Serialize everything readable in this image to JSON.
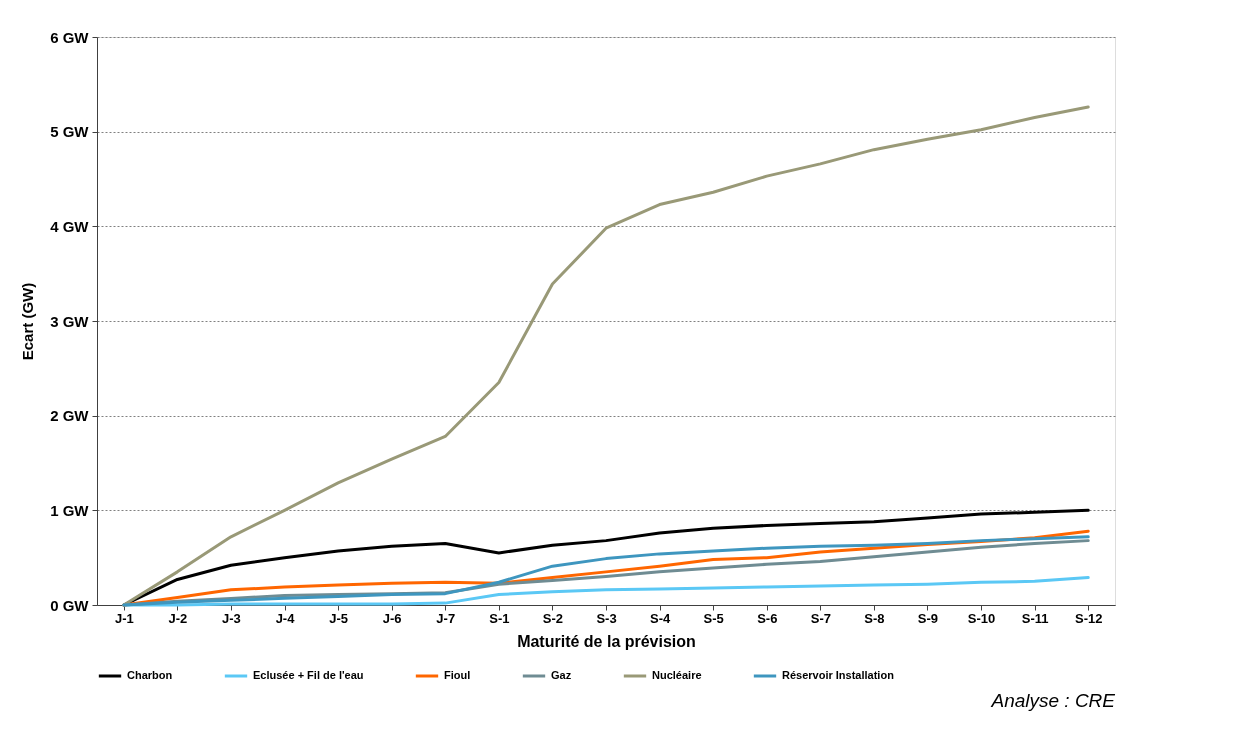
{
  "chart_data": {
    "type": "line",
    "xlabel": "Maturité de la prévision",
    "ylabel": "Ecart (GW)",
    "categories": [
      "J-1",
      "J-2",
      "J-3",
      "J-4",
      "J-5",
      "J-6",
      "J-7",
      "S-1",
      "S-2",
      "S-3",
      "S-4",
      "S-5",
      "S-6",
      "S-7",
      "S-8",
      "S-9",
      "S-10",
      "S-11",
      "S-12"
    ],
    "series": [
      {
        "name": "Charbon",
        "color": "#000000",
        "values": [
          0,
          0.27,
          0.42,
          0.5,
          0.57,
          0.62,
          0.65,
          0.55,
          0.63,
          0.68,
          0.76,
          0.81,
          0.84,
          0.86,
          0.88,
          0.92,
          0.96,
          0.98,
          1.0
        ]
      },
      {
        "name": "Eclusée + Fil de l'eau",
        "color": "#5bc8f5",
        "values": [
          0,
          0.0,
          0.01,
          0.01,
          0.01,
          0.01,
          0.02,
          0.11,
          0.14,
          0.16,
          0.17,
          0.18,
          0.19,
          0.2,
          0.21,
          0.22,
          0.24,
          0.25,
          0.29
        ]
      },
      {
        "name": "Fioul",
        "color": "#ff6600",
        "values": [
          0,
          0.08,
          0.16,
          0.19,
          0.21,
          0.23,
          0.24,
          0.23,
          0.29,
          0.35,
          0.41,
          0.48,
          0.5,
          0.56,
          0.6,
          0.64,
          0.67,
          0.71,
          0.78
        ]
      },
      {
        "name": "Gaz",
        "color": "#6f8c93",
        "values": [
          0,
          0.04,
          0.07,
          0.1,
          0.11,
          0.12,
          0.13,
          0.22,
          0.26,
          0.3,
          0.35,
          0.39,
          0.43,
          0.46,
          0.51,
          0.56,
          0.61,
          0.65,
          0.68
        ]
      },
      {
        "name": "Nucléaire",
        "color": "#999977",
        "values": [
          0,
          0.35,
          0.72,
          1.0,
          1.29,
          1.54,
          1.78,
          2.35,
          3.39,
          3.98,
          4.23,
          4.36,
          4.53,
          4.66,
          4.81,
          4.92,
          5.02,
          5.15,
          5.26
        ]
      },
      {
        "name": "Réservoir Installation",
        "color": "#3e96bf",
        "values": [
          0,
          0.03,
          0.05,
          0.07,
          0.09,
          0.11,
          0.12,
          0.24,
          0.41,
          0.49,
          0.54,
          0.57,
          0.6,
          0.62,
          0.63,
          0.65,
          0.68,
          0.7,
          0.72
        ]
      }
    ],
    "ylim": [
      0,
      6
    ],
    "yticks": [
      {
        "value": 0,
        "label": "0 GW"
      },
      {
        "value": 1,
        "label": "1 GW"
      },
      {
        "value": 2,
        "label": "2 GW"
      },
      {
        "value": 3,
        "label": "3 GW"
      },
      {
        "value": 4,
        "label": "4 GW"
      },
      {
        "value": 5,
        "label": "5 GW"
      },
      {
        "value": 6,
        "label": "6 GW"
      }
    ],
    "grid": "y",
    "legend": "bottom",
    "marker": "none",
    "line_style": "solid",
    "annotations": [
      "Analyse : CRE"
    ]
  }
}
